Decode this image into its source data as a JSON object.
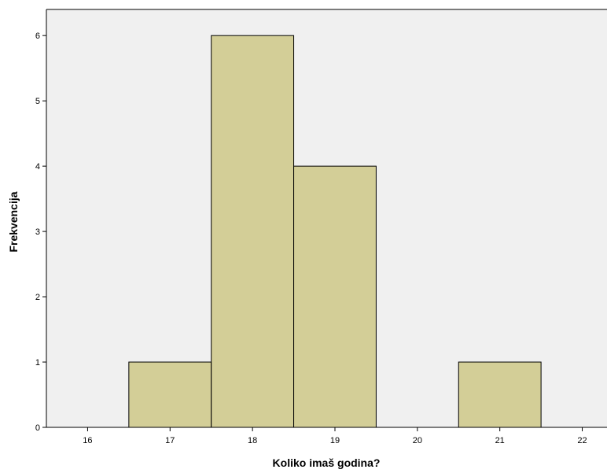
{
  "chart_data": {
    "type": "bar",
    "title": "",
    "xlabel": "Koliko imaš godina?",
    "ylabel": "Frekvencija",
    "xlim": [
      15.5,
      22.3
    ],
    "ylim": [
      0,
      6.4
    ],
    "x_ticks": [
      16,
      17,
      18,
      19,
      20,
      21,
      22
    ],
    "y_ticks": [
      0,
      1,
      2,
      3,
      4,
      5,
      6
    ],
    "bins": [
      {
        "start": 16.5,
        "end": 17.5,
        "value": 1
      },
      {
        "start": 17.5,
        "end": 18.5,
        "value": 6
      },
      {
        "start": 18.5,
        "end": 19.5,
        "value": 4
      },
      {
        "start": 20.5,
        "end": 21.5,
        "value": 1
      }
    ],
    "grid": false,
    "colors": {
      "bar_fill": "#D3CE97",
      "bar_stroke": "#000000",
      "plot_background": "#F0F0F0"
    }
  }
}
